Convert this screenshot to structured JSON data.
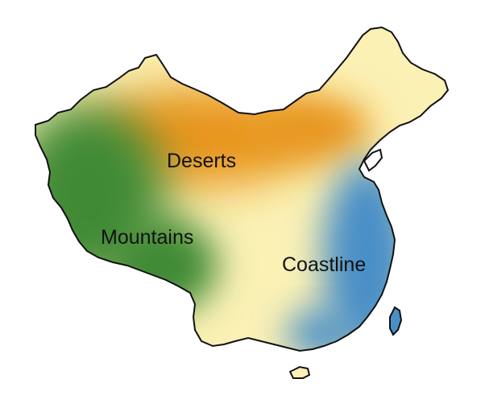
{
  "map": {
    "country_shape": "china-outline",
    "regions": [
      {
        "id": "deserts",
        "label": "Deserts",
        "color": "#E8951A"
      },
      {
        "id": "mountains",
        "label": "Mountains",
        "color": "#3F8A35"
      },
      {
        "id": "coastline",
        "label": "Coastline",
        "color": "#4A8FC8"
      }
    ],
    "plains_color": "#FBF1B5",
    "outline_color": "#111111",
    "background": "#ffffff"
  }
}
